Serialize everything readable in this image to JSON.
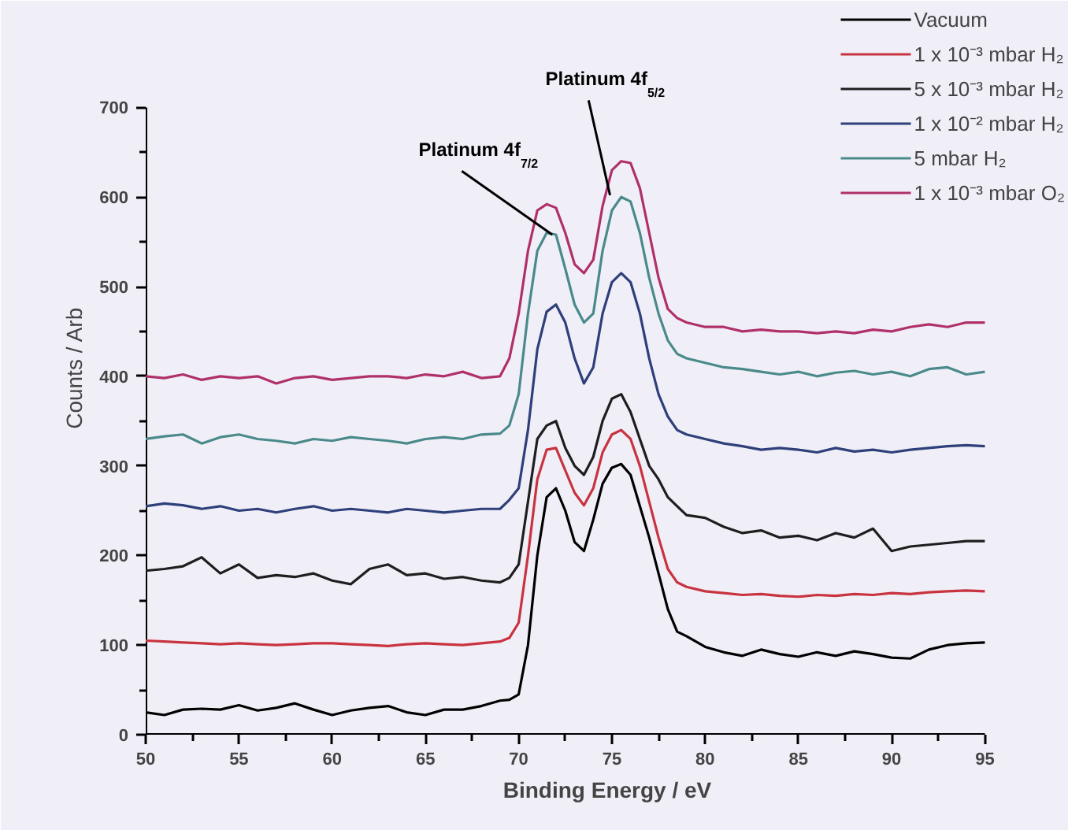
{
  "chart_data": {
    "type": "line",
    "xlabel": "Binding Energy / eV",
    "ylabel": "Counts / Arb",
    "x": [
      50,
      51,
      52,
      53,
      54,
      55,
      56,
      57,
      58,
      59,
      60,
      61,
      62,
      63,
      64,
      65,
      66,
      67,
      68,
      69,
      69.5,
      70,
      70.5,
      71,
      71.5,
      72,
      72.5,
      73,
      73.5,
      74,
      74.5,
      75,
      75.5,
      76,
      76.5,
      77,
      77.5,
      78,
      78.5,
      79,
      80,
      81,
      82,
      83,
      84,
      85,
      86,
      87,
      88,
      89,
      90,
      91,
      92,
      93,
      94,
      95
    ],
    "series": [
      {
        "name": "Vacuum",
        "color": "#000000",
        "values": [
          25,
          22,
          28,
          29,
          28,
          33,
          27,
          30,
          35,
          28,
          22,
          27,
          30,
          32,
          25,
          22,
          28,
          28,
          32,
          38,
          39,
          45,
          100,
          200,
          265,
          275,
          250,
          215,
          205,
          240,
          280,
          298,
          302,
          290,
          255,
          220,
          180,
          140,
          115,
          110,
          98,
          92,
          88,
          95,
          90,
          87,
          92,
          88,
          93,
          90,
          86,
          85,
          95,
          100,
          102,
          103
        ]
      },
      {
        "name": "1 x 10⁻³ mbar H₂",
        "color": "#c8333f",
        "values": [
          105,
          104,
          103,
          102,
          101,
          102,
          101,
          100,
          101,
          102,
          102,
          101,
          100,
          99,
          101,
          102,
          101,
          100,
          102,
          104,
          108,
          125,
          200,
          285,
          318,
          320,
          295,
          270,
          256,
          275,
          315,
          335,
          340,
          330,
          300,
          260,
          220,
          185,
          170,
          165,
          160,
          158,
          156,
          157,
          155,
          154,
          156,
          155,
          157,
          156,
          158,
          157,
          159,
          160,
          161,
          160
        ]
      },
      {
        "name": "5 x 10⁻³ mbar H₂",
        "color": "#1e1e1e",
        "values": [
          183,
          185,
          188,
          198,
          180,
          190,
          175,
          178,
          176,
          180,
          172,
          168,
          185,
          190,
          178,
          180,
          174,
          176,
          172,
          170,
          175,
          190,
          260,
          330,
          345,
          350,
          320,
          300,
          290,
          310,
          350,
          375,
          380,
          360,
          330,
          300,
          285,
          265,
          255,
          245,
          242,
          232,
          225,
          228,
          220,
          222,
          217,
          225,
          220,
          230,
          205,
          210,
          212,
          214,
          216,
          216
        ]
      },
      {
        "name": "1 x 10⁻² mbar H₂",
        "color": "#2e3f7a",
        "values": [
          255,
          258,
          256,
          252,
          255,
          250,
          252,
          248,
          252,
          255,
          250,
          252,
          250,
          248,
          252,
          250,
          248,
          250,
          252,
          252,
          262,
          275,
          340,
          430,
          472,
          480,
          460,
          420,
          392,
          410,
          470,
          505,
          515,
          505,
          470,
          420,
          380,
          355,
          340,
          335,
          330,
          325,
          322,
          318,
          320,
          318,
          315,
          320,
          316,
          318,
          315,
          318,
          320,
          322,
          323,
          322
        ]
      },
      {
        "name": "5 mbar H₂",
        "color": "#4a8a8a",
        "values": [
          330,
          333,
          335,
          325,
          332,
          335,
          330,
          328,
          325,
          330,
          328,
          332,
          330,
          328,
          325,
          330,
          332,
          330,
          335,
          336,
          345,
          380,
          470,
          540,
          560,
          558,
          520,
          480,
          460,
          470,
          540,
          585,
          600,
          595,
          560,
          510,
          470,
          440,
          425,
          420,
          415,
          410,
          408,
          405,
          402,
          405,
          400,
          404,
          406,
          402,
          405,
          400,
          408,
          410,
          402,
          405
        ]
      },
      {
        "name": "1 x 10⁻³ mbar O₂",
        "color": "#b0306a",
        "values": [
          400,
          398,
          402,
          396,
          400,
          398,
          400,
          392,
          398,
          400,
          396,
          398,
          400,
          400,
          398,
          402,
          400,
          405,
          398,
          400,
          420,
          470,
          540,
          585,
          592,
          588,
          560,
          525,
          515,
          530,
          590,
          630,
          640,
          638,
          610,
          560,
          510,
          475,
          465,
          460,
          455,
          455,
          450,
          452,
          450,
          450,
          448,
          450,
          448,
          452,
          450,
          455,
          458,
          455,
          460,
          460
        ]
      }
    ],
    "xlim": [
      50,
      95
    ],
    "xticks": [
      50,
      55,
      60,
      65,
      70,
      75,
      80,
      85,
      90,
      95
    ],
    "ylim": [
      0,
      700
    ],
    "yticks": [
      0,
      100,
      200,
      300,
      400,
      500,
      600,
      700
    ],
    "annotations": [
      {
        "text": "Platinum 4f$_{7/2}$",
        "x": 71.8,
        "y": 558
      },
      {
        "text": "Platinum 4f$_{5/2}$",
        "x": 74.9,
        "y": 602
      }
    ],
    "grid": false,
    "legend": "top right",
    "marker": "none",
    "line_style": "solid"
  }
}
